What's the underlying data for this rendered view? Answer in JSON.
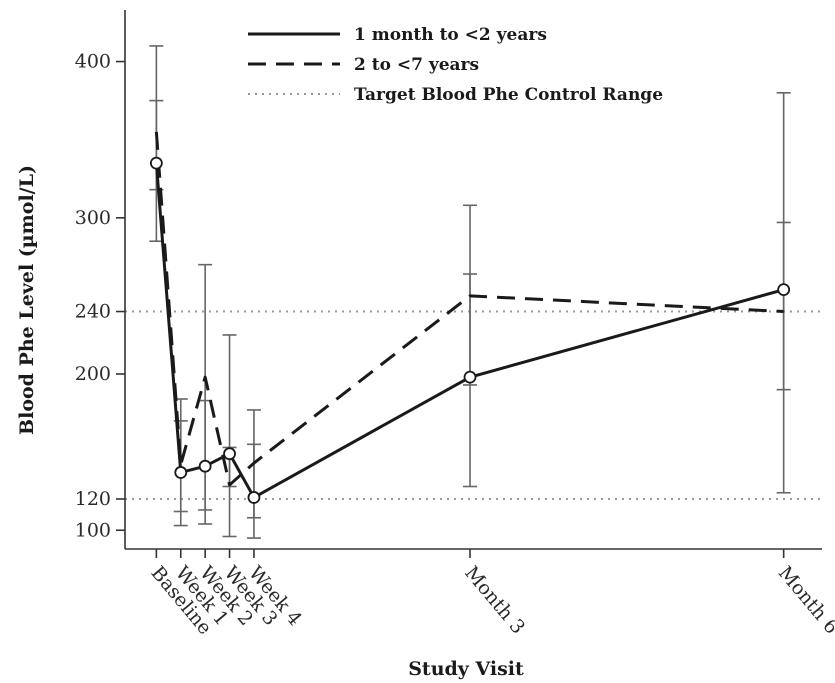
{
  "chart_data": {
    "type": "line",
    "xlabel": "Study Visit",
    "ylabel": "Blood Phe Level (µmol/L)",
    "categories": [
      "Baseline",
      "Week 1",
      "Week 2",
      "Week 3",
      "Week 4",
      "Month 3",
      "Month 6"
    ],
    "x_positions_days": [
      0,
      7,
      14,
      21,
      28,
      90,
      180
    ],
    "xlim": [
      -9,
      191
    ],
    "ylim": [
      88,
      433
    ],
    "yticks": [
      100,
      120,
      200,
      240,
      300,
      400
    ],
    "series": [
      {
        "name": "1 month to <2 years",
        "style": "solid",
        "marker": "circle",
        "values": [
          335,
          137,
          141,
          149,
          121,
          198,
          254
        ],
        "error_low": [
          285,
          112,
          113,
          96,
          95,
          128,
          124
        ],
        "error_high": [
          375,
          184,
          270,
          225,
          177,
          308,
          380
        ]
      },
      {
        "name": "2 to <7 years",
        "style": "dashed",
        "marker": "none",
        "values": [
          355,
          142,
          198,
          129,
          143,
          250,
          240
        ],
        "error_low": [
          318,
          103,
          104,
          128,
          108,
          193,
          190
        ],
        "error_high": [
          410,
          170,
          183,
          153,
          155,
          264,
          297
        ]
      }
    ],
    "reference": {
      "name": "Target Blood Phe Control Range",
      "style": "dotted",
      "values": [
        120,
        240
      ]
    },
    "legend": "top-center",
    "grid": false,
    "colors": {
      "line": "#1a1a1a",
      "error": "#666666",
      "reference": "#999999"
    }
  }
}
